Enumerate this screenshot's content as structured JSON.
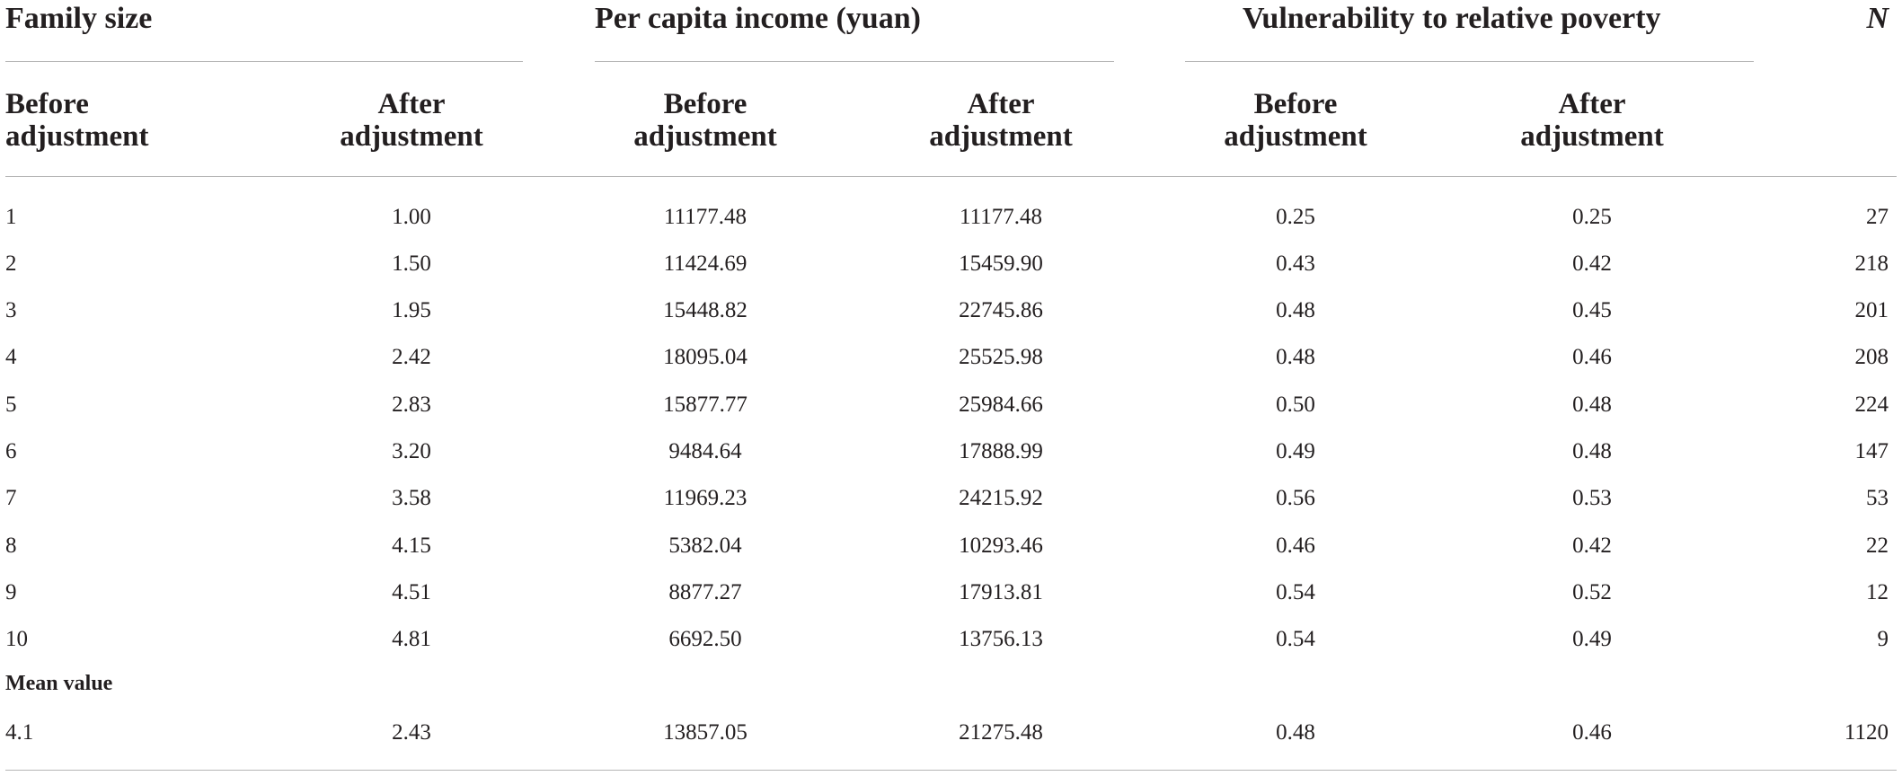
{
  "groups": {
    "family_size": "Family size",
    "income": "Per capita income (yuan)",
    "vulnerability": "Vulnerability to relative poverty",
    "n": "N"
  },
  "subheaders": {
    "c1": [
      "Before",
      "adjustment"
    ],
    "c2": [
      "After",
      "adjustment"
    ],
    "c3": [
      "Before",
      "adjustment"
    ],
    "c4": [
      "After",
      "adjustment"
    ],
    "c5": [
      "Before",
      "adjustment"
    ],
    "c6": [
      "After",
      "adjustment"
    ]
  },
  "rows": [
    [
      "1",
      "1.00",
      "11177.48",
      "11177.48",
      "0.25",
      "0.25",
      "27"
    ],
    [
      "2",
      "1.50",
      "11424.69",
      "15459.90",
      "0.43",
      "0.42",
      "218"
    ],
    [
      "3",
      "1.95",
      "15448.82",
      "22745.86",
      "0.48",
      "0.45",
      "201"
    ],
    [
      "4",
      "2.42",
      "18095.04",
      "25525.98",
      "0.48",
      "0.46",
      "208"
    ],
    [
      "5",
      "2.83",
      "15877.77",
      "25984.66",
      "0.50",
      "0.48",
      "224"
    ],
    [
      "6",
      "3.20",
      "9484.64",
      "17888.99",
      "0.49",
      "0.48",
      "147"
    ],
    [
      "7",
      "3.58",
      "11969.23",
      "24215.92",
      "0.56",
      "0.53",
      "53"
    ],
    [
      "8",
      "4.15",
      "5382.04",
      "10293.46",
      "0.46",
      "0.42",
      "22"
    ],
    [
      "9",
      "4.51",
      "8877.27",
      "17913.81",
      "0.54",
      "0.52",
      "12"
    ],
    [
      "10",
      "4.81",
      "6692.50",
      "13756.13",
      "0.54",
      "0.49",
      "9"
    ]
  ],
  "mean_label": "Mean value",
  "mean_row": [
    "4.1",
    "2.43",
    "13857.05",
    "21275.48",
    "0.48",
    "0.46",
    "1120"
  ]
}
